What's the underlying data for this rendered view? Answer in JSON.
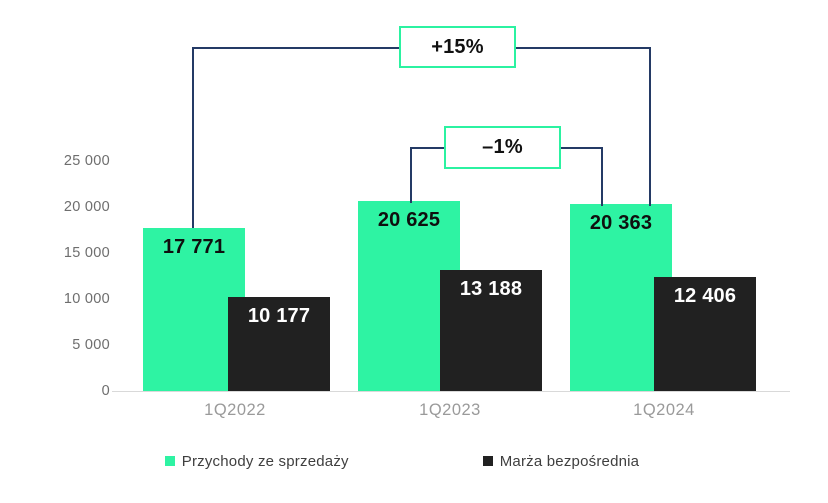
{
  "colors": {
    "bar_green": "#2EF3A3",
    "bar_black": "#212121",
    "green_bar_label_text": "#0F0F0F",
    "black_bar_label_text": "#FFFFFF",
    "connector_line": "#243A65",
    "annotation_border": "#2BF2A1",
    "axis_line": "#D9D9D9",
    "ytick_text": "#6E6E6E",
    "category_text": "#9A9A9A",
    "legend_text": "#3F3F3F"
  },
  "chart_data": {
    "type": "bar",
    "title": "",
    "categories": [
      "1Q2022",
      "1Q2023",
      "1Q2024"
    ],
    "series": [
      {
        "name": "Przychody ze sprzedaży",
        "color": "#2EF3A3",
        "label_color": "#0F0F0F",
        "values": [
          17771,
          20625,
          20363
        ],
        "labels": [
          "17 771",
          "20 625",
          "20 363"
        ]
      },
      {
        "name": "Marża bezpośrednia",
        "color": "#212121",
        "label_color": "#FFFFFF",
        "values": [
          10177,
          13188,
          12406
        ],
        "labels": [
          "10 177",
          "13 188",
          "12 406"
        ]
      }
    ],
    "ylim": [
      0,
      25000
    ],
    "yticks": [
      {
        "value": 0,
        "label": "0"
      },
      {
        "value": 5000,
        "label": "5 000"
      },
      {
        "value": 10000,
        "label": "10 000"
      },
      {
        "value": 15000,
        "label": "15 000"
      },
      {
        "value": 20000,
        "label": "20 000"
      },
      {
        "value": 25000,
        "label": "25 000"
      }
    ],
    "grid": false,
    "legend_position": "bottom",
    "bar_style": "overlapping",
    "annotations": [
      {
        "label": "+15%",
        "from": "1Q2022",
        "to": "1Q2024",
        "series": "Przychody ze sprzedaży"
      },
      {
        "label": "–1%",
        "from": "1Q2023",
        "to": "1Q2024",
        "series": "Przychody ze sprzedaży"
      }
    ]
  }
}
